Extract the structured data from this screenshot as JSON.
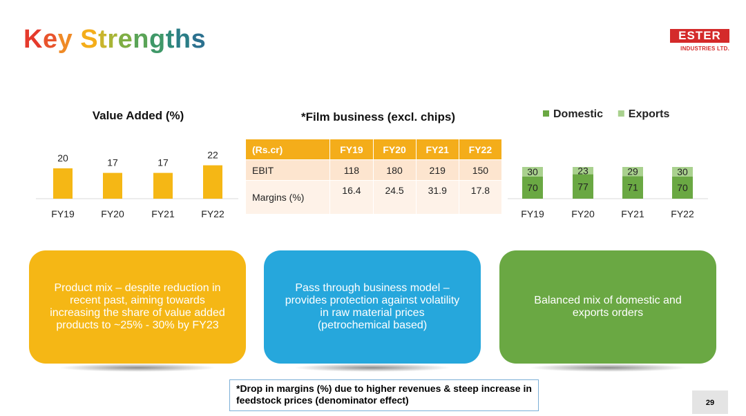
{
  "title": "Key Strengths",
  "title_colors": [
    "#e53a2c",
    "#e8542d",
    "#ef8a26",
    "#f4ad1a",
    "#c9b52c",
    "#a8b536",
    "#7fae44",
    "#5aa457",
    "#3f9868",
    "#2f8a78",
    "#2a7d86",
    "#2c718f",
    "#2d6795"
  ],
  "logo": {
    "name": "ESTER",
    "sub": "INDUSTRIES LTD."
  },
  "value_added_chart": {
    "chart_data": {
      "type": "bar",
      "title": "Value Added (%)",
      "categories": [
        "FY19",
        "FY20",
        "FY21",
        "FY22"
      ],
      "values": [
        20,
        17,
        17,
        22
      ],
      "color": "#f5b715"
    }
  },
  "film_table": {
    "title": "*Film business (excl. chips)",
    "headers": [
      "(Rs.cr)",
      "FY19",
      "FY20",
      "FY21",
      "FY22"
    ],
    "rows": [
      {
        "label": "EBIT",
        "values": [
          "118",
          "180",
          "219",
          "150"
        ]
      },
      {
        "label": "Margins (%)",
        "values": [
          "16.4",
          "24.5",
          "31.9",
          "17.8"
        ]
      }
    ]
  },
  "mix_chart": {
    "chart_data": {
      "type": "bar",
      "stacked": true,
      "categories": [
        "FY19",
        "FY20",
        "FY21",
        "FY22"
      ],
      "series": [
        {
          "name": "Domestic",
          "values": [
            70,
            77,
            71,
            70
          ],
          "color": "#6aa843"
        },
        {
          "name": "Exports",
          "values": [
            30,
            23,
            29,
            30
          ],
          "color": "#a9d18e"
        }
      ],
      "legend": "top"
    }
  },
  "cards": [
    {
      "text": "Product mix – despite reduction in recent past, aiming towards increasing the share of value added products to ~25% - 30% by FY23",
      "color": "#f5b715"
    },
    {
      "text": "Pass through business model – provides protection against volatility in raw material prices (petrochemical based)",
      "color": "#26a7dc"
    },
    {
      "text": "Balanced mix of domestic and exports orders",
      "color": "#6aa843"
    }
  ],
  "note": "*Drop in margins (%) due to higher revenues & steep increase in feedstock prices (denominator effect)",
  "page_number": "29"
}
